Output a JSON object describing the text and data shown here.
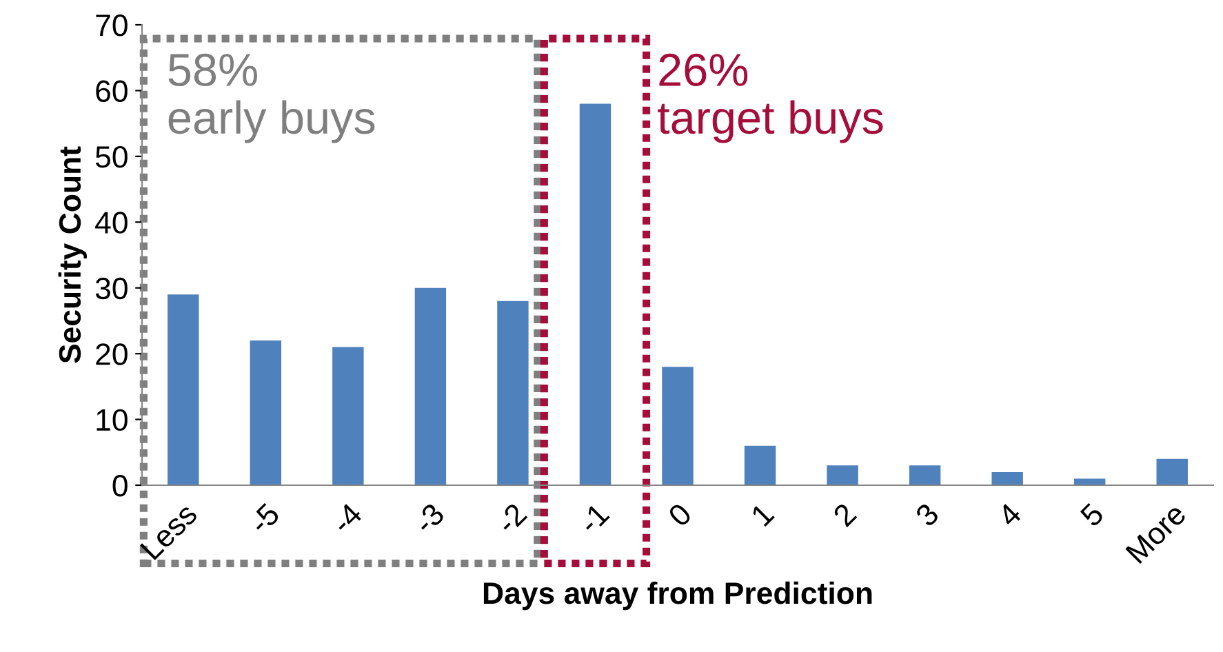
{
  "chart_data": {
    "type": "bar",
    "xlabel": "Days away from Prediction",
    "ylabel": "Security Count",
    "categories": [
      "Less",
      "-5",
      "-4",
      "-3",
      "-2",
      "-1",
      "0",
      "1",
      "2",
      "3",
      "4",
      "5",
      "More"
    ],
    "values": [
      29,
      22,
      21,
      30,
      28,
      58,
      18,
      6,
      3,
      3,
      2,
      1,
      4
    ],
    "color": "#4f81bd",
    "ylim": [
      0,
      70
    ],
    "yticks": [
      0,
      10,
      20,
      30,
      40,
      50,
      60,
      70
    ],
    "grid": false,
    "annotations": [
      "58%\nearly buys",
      "26%\ntarget buys"
    ]
  }
}
